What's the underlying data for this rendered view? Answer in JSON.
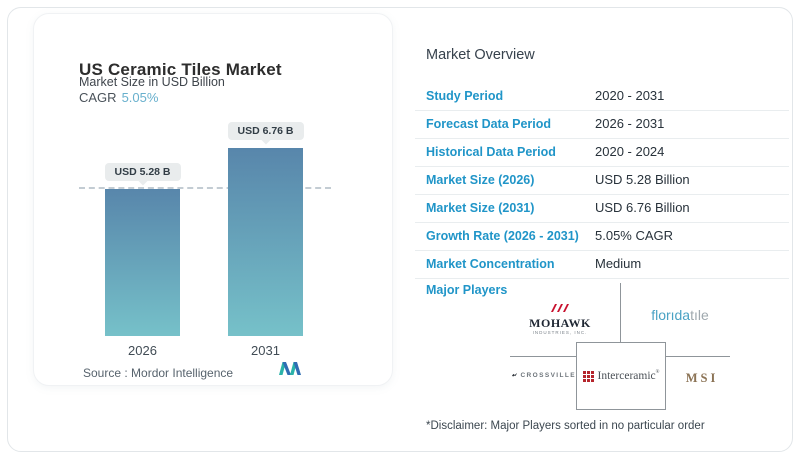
{
  "card": {
    "title": "US Ceramic Tiles Market",
    "subtitle": "Market Size in USD Billion",
    "cagr_label": "CAGR",
    "cagr_value": "5.05%",
    "source_label": "Source :  Mordor Intelligence"
  },
  "chart_data": {
    "type": "bar",
    "title": "US Ceramic Tiles Market",
    "ylabel": "Market Size in USD Billion",
    "categories": [
      "2026",
      "2031"
    ],
    "values": [
      5.28,
      6.76
    ],
    "value_labels": [
      "USD 5.28 B",
      "USD 6.76 B"
    ],
    "cagr_pct": 5.05,
    "reference_line": 5.28,
    "ylim": [
      0,
      6.76
    ],
    "grid": false,
    "legend": false,
    "bar_gradient_top": "#5886ab",
    "bar_gradient_bottom": "#76c1c9"
  },
  "overview": {
    "heading": "Market Overview",
    "rows": [
      {
        "label": "Study Period",
        "value": "2020 - 2031"
      },
      {
        "label": "Forecast Data Period",
        "value": "2026 - 2031"
      },
      {
        "label": "Historical Data Period",
        "value": "2020 - 2024"
      },
      {
        "label": "Market Size (2026)",
        "value": "USD 5.28 Billion"
      },
      {
        "label": "Market Size (2031)",
        "value": "USD 6.76 Billion"
      },
      {
        "label": "Growth Rate (2026 - 2031)",
        "value": "5.05% CAGR"
      },
      {
        "label": "Market Concentration",
        "value": "Medium"
      }
    ],
    "major_players_label": "Major Players",
    "disclaimer": "*Disclaimer: Major Players sorted in no particular order"
  },
  "players": {
    "mohawk_name": "MOHAWK",
    "mohawk_subtext": "INDUSTRIES, INC.",
    "floridatile_part1": "florıda",
    "floridatile_part2": "tıle",
    "crossville_name": "CROSSVILLE",
    "interceramic_name": "Interceramic",
    "interceramic_reg": "®",
    "msi_name": "MSI"
  },
  "colors": {
    "label_blue": "#2095c8",
    "cagr_teal": "#68b0cd",
    "line_gray": "#8f959a"
  }
}
